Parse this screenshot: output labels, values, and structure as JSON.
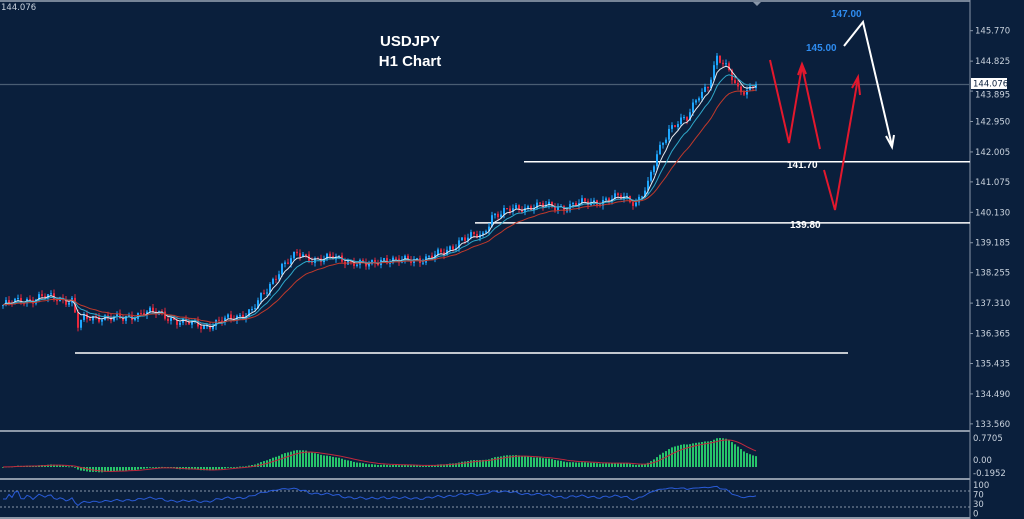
{
  "chart_data": {
    "type": "candlestick",
    "symbol": "USDJPY",
    "title": "USDJPY",
    "subtitle": "H1 Chart",
    "current_price": "144.076",
    "top_left_readout": "144.076",
    "ylim": [
      133.1,
      146.6
    ],
    "y_ticks": [
      "145.770",
      "144.825",
      "143.895",
      "142.950",
      "142.005",
      "141.075",
      "140.130",
      "139.185",
      "138.255",
      "137.310",
      "136.365",
      "135.435",
      "134.490",
      "133.560"
    ],
    "close_path": [
      [
        0,
        137.25
      ],
      [
        7,
        137.4
      ],
      [
        13,
        137.5
      ],
      [
        23,
        137.4
      ],
      [
        25,
        136.6
      ],
      [
        27,
        136.8
      ],
      [
        33,
        136.9
      ],
      [
        40,
        136.8
      ],
      [
        47,
        137.05
      ],
      [
        53,
        136.95
      ],
      [
        60,
        136.7
      ],
      [
        67,
        136.6
      ],
      [
        77,
        136.85
      ],
      [
        83,
        137.1
      ],
      [
        88,
        137.7
      ],
      [
        93,
        138.5
      ],
      [
        98,
        138.8
      ],
      [
        103,
        138.7
      ],
      [
        110,
        138.7
      ],
      [
        117,
        138.6
      ],
      [
        122,
        138.45
      ],
      [
        127,
        138.7
      ],
      [
        133,
        138.6
      ],
      [
        140,
        138.7
      ],
      [
        147,
        138.85
      ],
      [
        153,
        139.33
      ],
      [
        160,
        139.4
      ],
      [
        163,
        140.05
      ],
      [
        170,
        140.2
      ],
      [
        177,
        140.35
      ],
      [
        182,
        140.3
      ],
      [
        187,
        140.3
      ],
      [
        193,
        140.4
      ],
      [
        200,
        140.5
      ],
      [
        207,
        140.6
      ],
      [
        211,
        140.45
      ],
      [
        215,
        140.97
      ],
      [
        218,
        141.9
      ],
      [
        222,
        142.75
      ],
      [
        225,
        142.95
      ],
      [
        228,
        143.0
      ],
      [
        232,
        143.8
      ],
      [
        235,
        144.1
      ],
      [
        238,
        144.9
      ],
      [
        242,
        144.5
      ],
      [
        245,
        144.0
      ],
      [
        248,
        143.9
      ],
      [
        251,
        144.1
      ]
    ],
    "moving_averages": [
      {
        "period": 5,
        "color": "#e6e9ee"
      },
      {
        "period": 10,
        "color": "#2fa7c9"
      },
      {
        "period": 20,
        "color": "#c0392b"
      }
    ],
    "candle_colors": {
      "up": "#1ea7ff",
      "down": "#e8283c"
    },
    "levels": [
      {
        "price": 141.7,
        "label": "141.70"
      },
      {
        "price": 139.8,
        "label": "139.80"
      },
      {
        "price": 135.76,
        "label": ""
      }
    ],
    "targets": [
      {
        "label": "145.00",
        "color": "#2e8cf0"
      },
      {
        "label": "147.00",
        "color": "#2e8cf0"
      }
    ],
    "oscillator": {
      "type": "histogram",
      "y_ticks": [
        "0.7705",
        "0.00",
        "-0.1952"
      ],
      "bar_color": "#27c46a",
      "signal_color": "#c0283c"
    },
    "rsi": {
      "y_ticks": [
        "100",
        "70",
        "30",
        "0"
      ],
      "levels": [
        70,
        30
      ],
      "line_color": "#2a5bd7"
    }
  }
}
